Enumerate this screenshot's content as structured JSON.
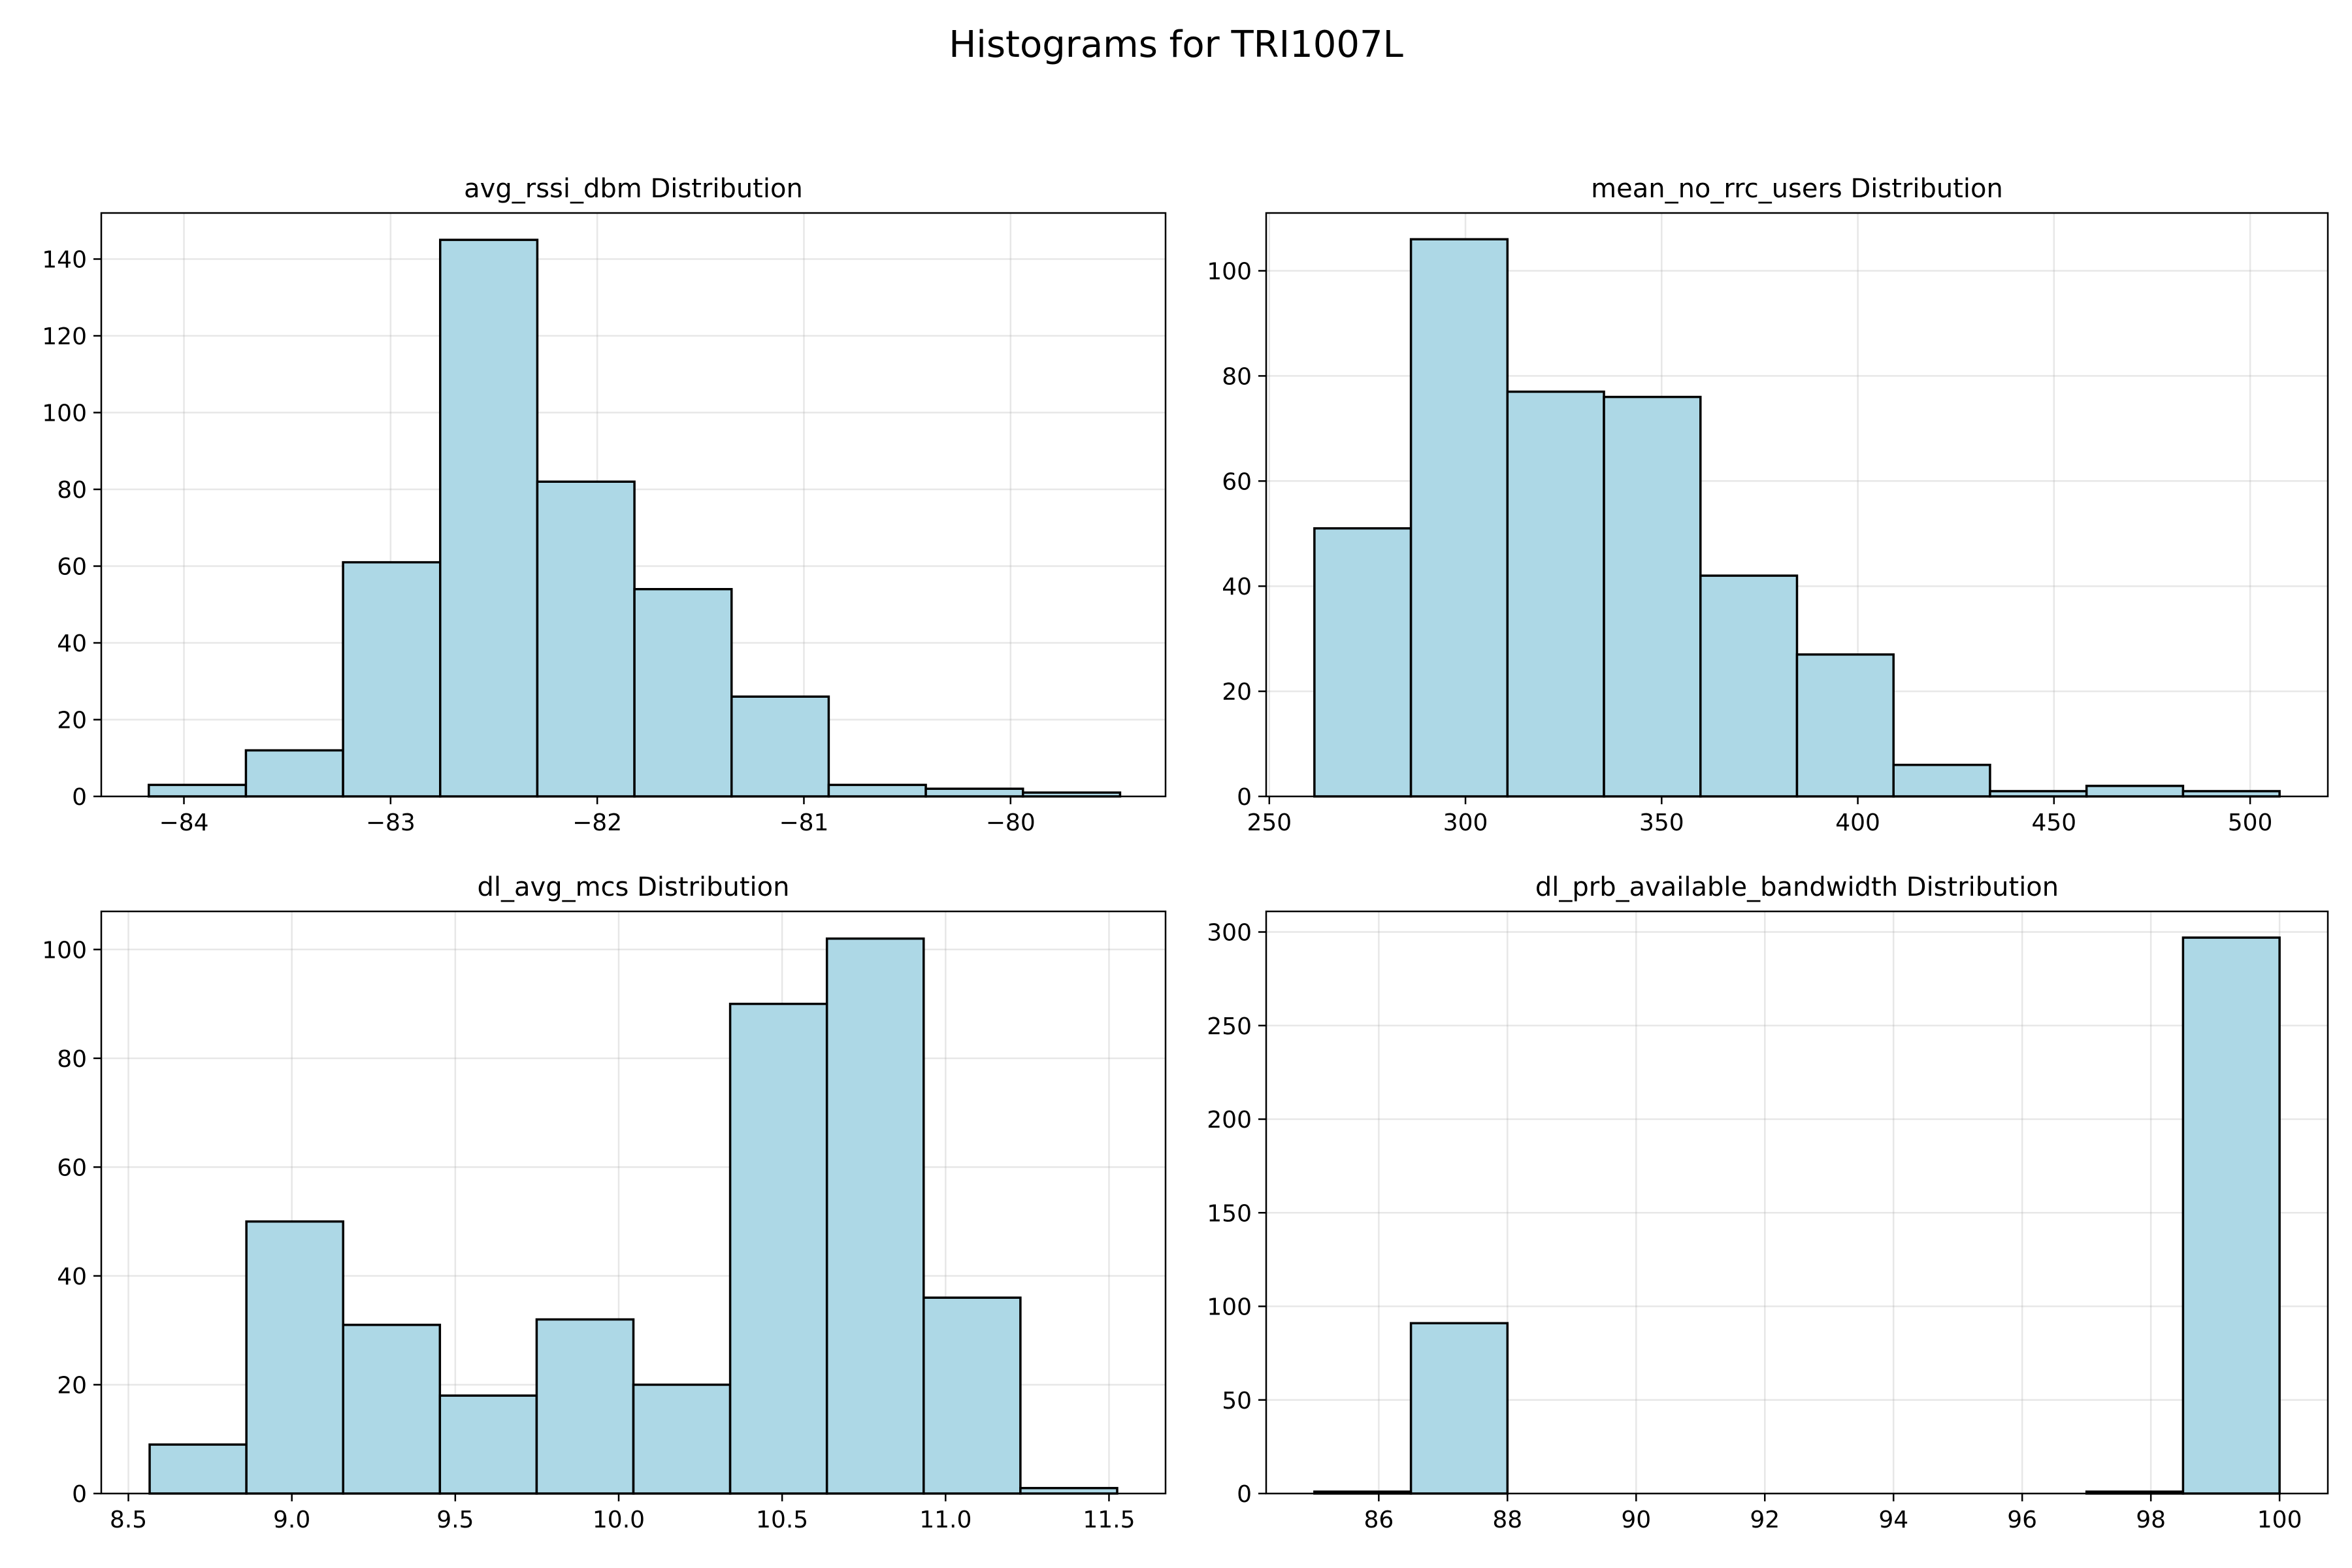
{
  "suptitle": "Histograms for TRI1007L",
  "chart_data": [
    {
      "type": "bar",
      "title": "avg_rssi_dbm Distribution",
      "xlabel": "",
      "ylabel": "",
      "bin_edges": [
        -84.17,
        -83.7,
        -83.23,
        -82.76,
        -82.29,
        -81.82,
        -81.35,
        -80.88,
        -80.41,
        -79.94,
        -79.47
      ],
      "values": [
        3,
        12,
        61,
        145,
        82,
        54,
        26,
        3,
        2,
        1
      ],
      "xlim": [
        -84.4,
        -79.25
      ],
      "ylim": [
        0,
        152
      ],
      "xticks": [
        -84,
        -83,
        -82,
        -81,
        -80
      ],
      "xtick_labels": [
        "−84",
        "−83",
        "−82",
        "−81",
        "−80"
      ],
      "yticks": [
        0,
        20,
        40,
        60,
        80,
        100,
        120,
        140
      ],
      "grid": true,
      "bar_color": "#add8e6",
      "edge_color": "#000000"
    },
    {
      "type": "bar",
      "title": "mean_no_rrc_users Distribution",
      "xlabel": "",
      "ylabel": "",
      "bin_edges": [
        261.5,
        286.1,
        310.7,
        335.3,
        359.9,
        384.5,
        409.1,
        433.7,
        458.3,
        482.9,
        507.5
      ],
      "values": [
        51,
        106,
        77,
        76,
        42,
        27,
        6,
        1,
        2,
        1
      ],
      "xlim": [
        249.2,
        519.8
      ],
      "ylim": [
        0,
        111
      ],
      "xticks": [
        250,
        300,
        350,
        400,
        450,
        500
      ],
      "xtick_labels": [
        "250",
        "300",
        "350",
        "400",
        "450",
        "500"
      ],
      "yticks": [
        0,
        20,
        40,
        60,
        80,
        100
      ],
      "grid": true,
      "bar_color": "#add8e6",
      "edge_color": "#000000"
    },
    {
      "type": "bar",
      "title": "dl_avg_mcs Distribution",
      "xlabel": "",
      "ylabel": "",
      "bin_edges": [
        8.565,
        8.861,
        9.157,
        9.453,
        9.749,
        10.045,
        10.341,
        10.637,
        10.933,
        11.229,
        11.525
      ],
      "values": [
        9,
        50,
        31,
        18,
        32,
        20,
        90,
        102,
        36,
        1
      ],
      "xlim": [
        8.417,
        11.673
      ],
      "ylim": [
        0,
        107
      ],
      "xticks": [
        8.5,
        9.0,
        9.5,
        10.0,
        10.5,
        11.0,
        11.5
      ],
      "xtick_labels": [
        "8.5",
        "9.0",
        "9.5",
        "10.0",
        "10.5",
        "11.0",
        "11.5"
      ],
      "yticks": [
        0,
        20,
        40,
        60,
        80,
        100
      ],
      "grid": true,
      "bar_color": "#add8e6",
      "edge_color": "#000000"
    },
    {
      "type": "bar",
      "title": "dl_prb_available_bandwidth Distribution",
      "xlabel": "",
      "ylabel": "",
      "bin_edges": [
        85,
        86.5,
        88,
        89.5,
        91,
        92.5,
        94,
        95.5,
        97,
        98.5,
        100
      ],
      "values": [
        1,
        91,
        0,
        0,
        0,
        0,
        0,
        0,
        1,
        297
      ],
      "xlim": [
        84.25,
        100.75
      ],
      "ylim": [
        0,
        311
      ],
      "xticks": [
        86,
        88,
        90,
        92,
        94,
        96,
        98,
        100
      ],
      "xtick_labels": [
        "86",
        "88",
        "90",
        "92",
        "94",
        "96",
        "98",
        "100"
      ],
      "yticks": [
        0,
        50,
        100,
        150,
        200,
        250,
        300
      ],
      "grid": true,
      "bar_color": "#add8e6",
      "edge_color": "#000000"
    }
  ]
}
